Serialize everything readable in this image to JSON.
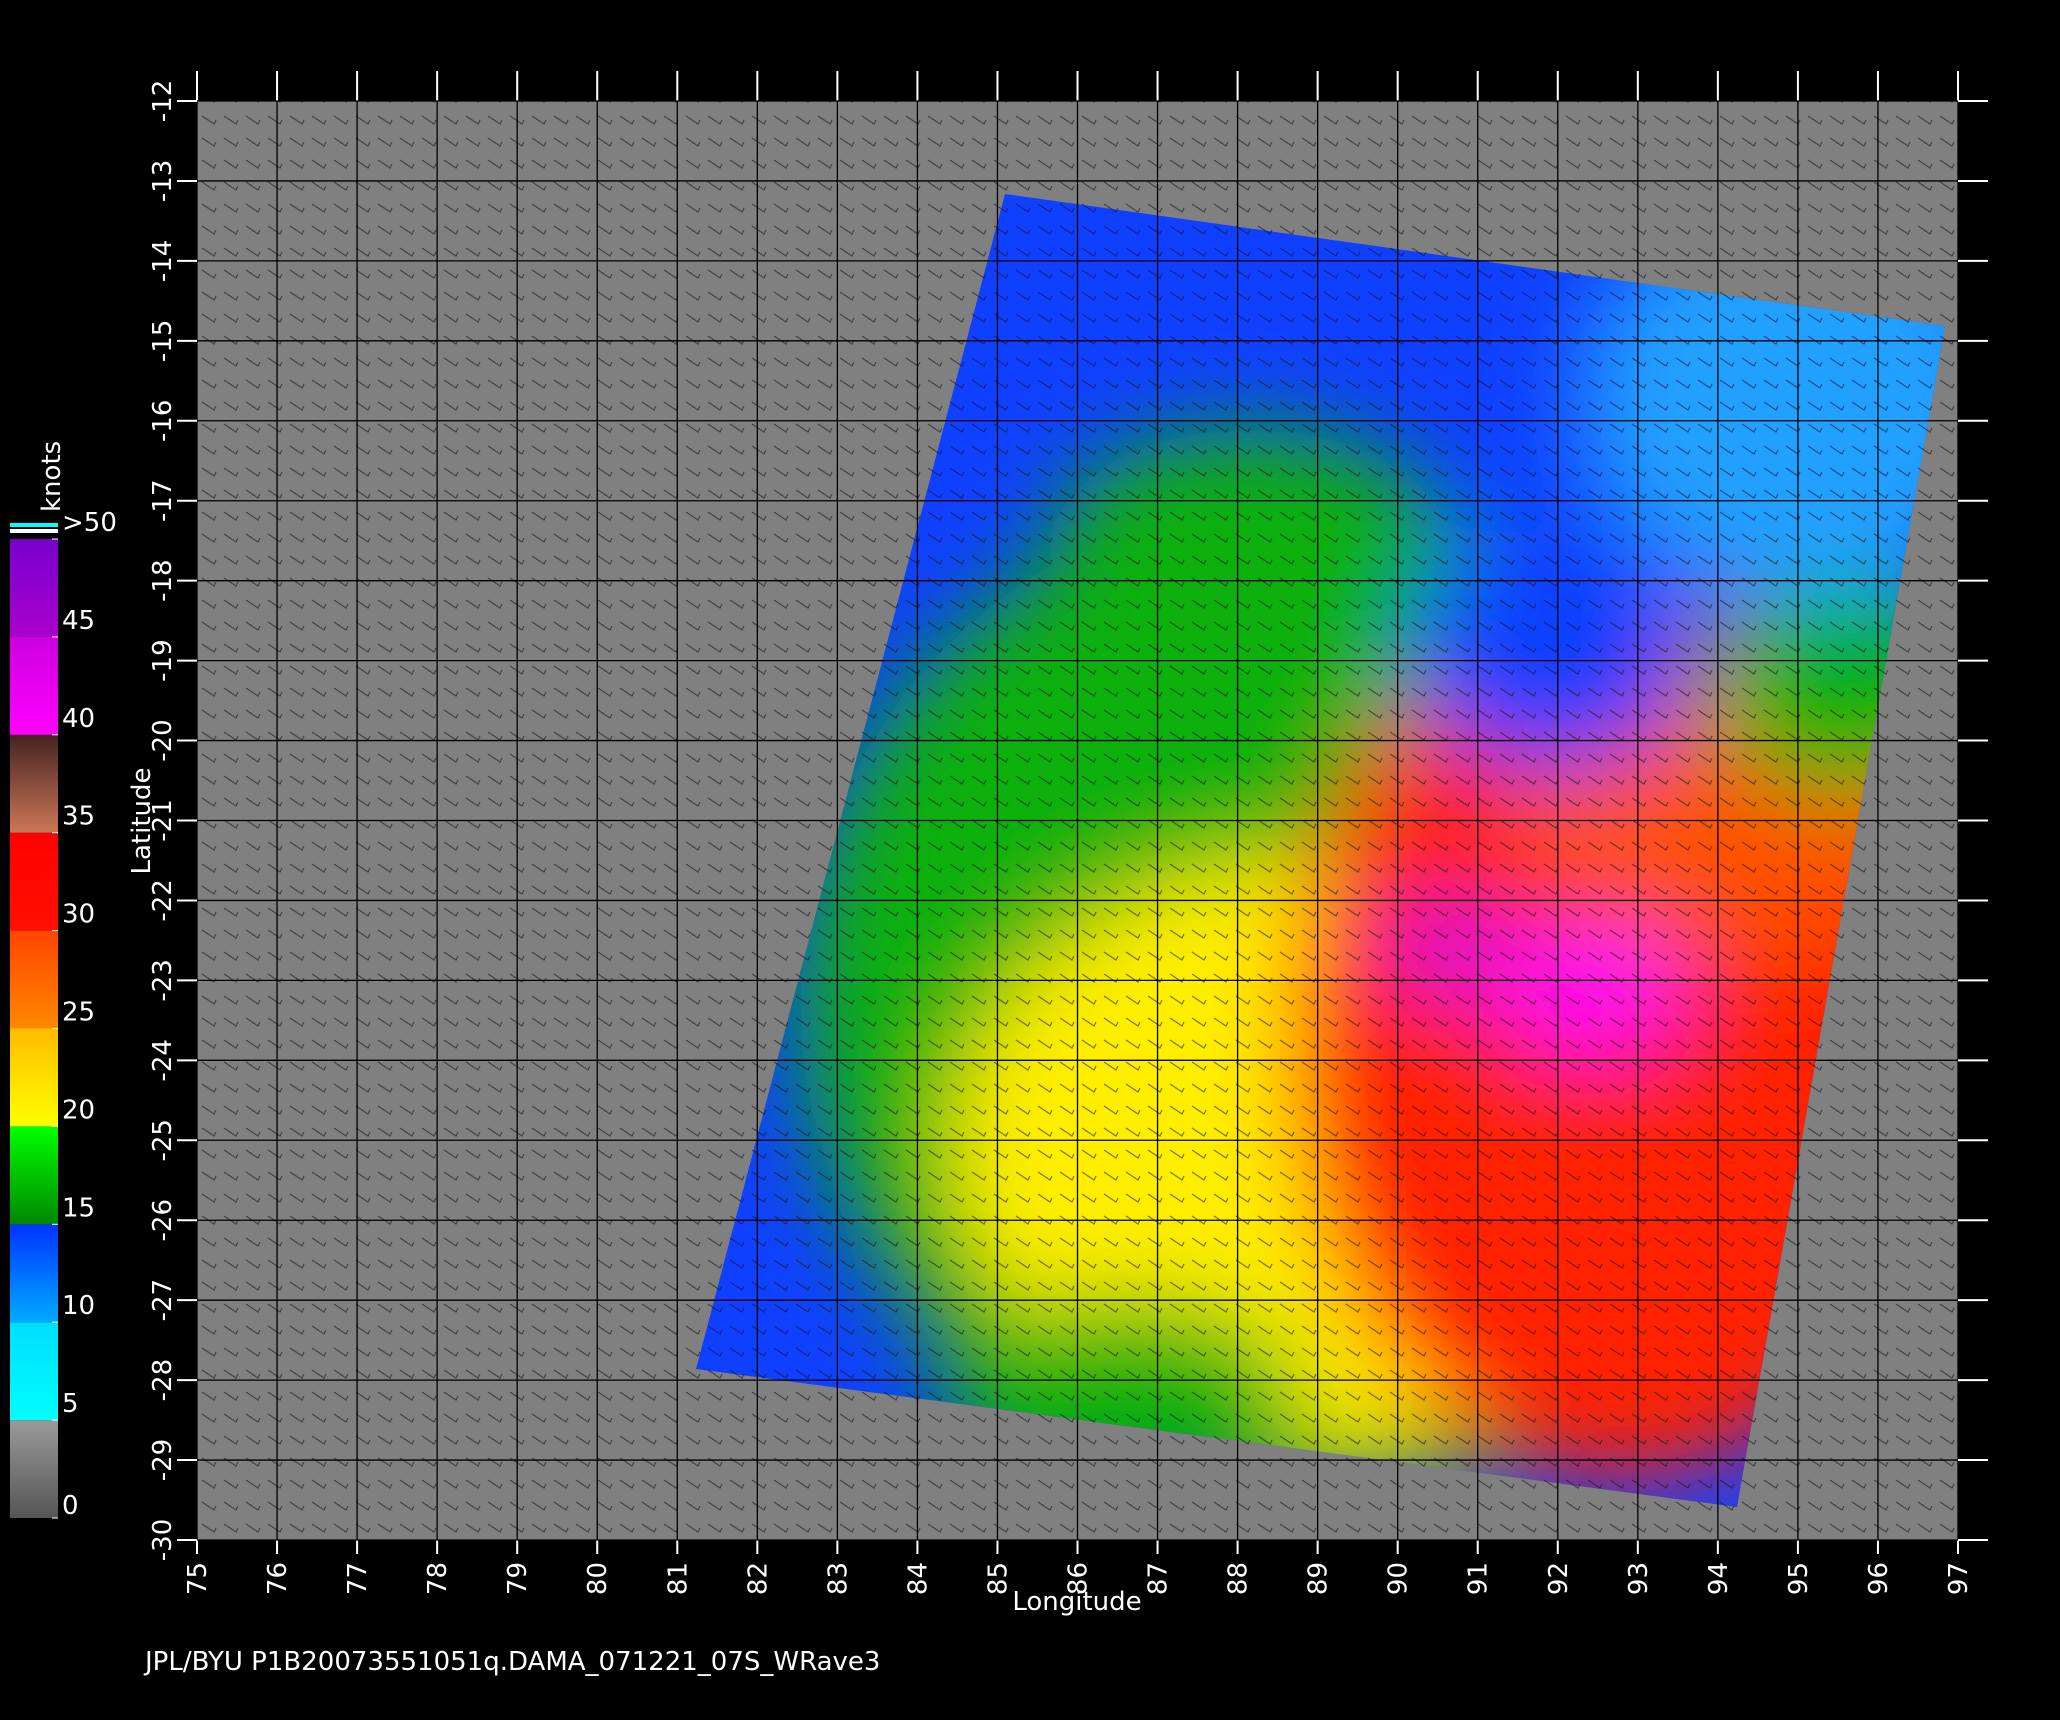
{
  "map": {
    "xlabel": "Longitude",
    "ylabel": "Latitude",
    "xlim": [
      75,
      97
    ],
    "xticks": [
      75,
      76,
      77,
      78,
      79,
      80,
      81,
      82,
      83,
      84,
      85,
      86,
      87,
      88,
      89,
      90,
      91,
      92,
      93,
      94,
      95,
      96,
      97
    ],
    "ylim": [
      -30,
      -12
    ],
    "yticks": [
      -12,
      -13,
      -14,
      -15,
      -16,
      -17,
      -18,
      -19,
      -20,
      -21,
      -22,
      -23,
      -24,
      -25,
      -26,
      -27,
      -28,
      -29,
      -30
    ]
  },
  "colorbar": {
    "title": "knots",
    "lim": [
      0,
      50
    ],
    "ticks": [
      0,
      5,
      10,
      15,
      20,
      25,
      30,
      35,
      40,
      45,
      {
        "value": 50,
        "label": ">50"
      }
    ],
    "colors": [
      [
        "#555555",
        "#9a9a9a"
      ],
      [
        "#00ffff",
        "#00ddff"
      ],
      [
        "#00aaff",
        "#0033ff"
      ],
      [
        "#008800",
        "#00ff00"
      ],
      [
        "#ffff00",
        "#ffbb00"
      ],
      [
        "#ff8800",
        "#ff4400"
      ],
      [
        "#ff1100",
        "#ff0000"
      ],
      [
        "#cc7755",
        "#442222"
      ],
      [
        "#ff00ff",
        "#cc00dd"
      ],
      [
        "#aa00cc",
        "#7700cc"
      ]
    ]
  },
  "footer": "JPL/BYU  P1B20073551051q.DAMA_071221_07S_WRave3"
}
